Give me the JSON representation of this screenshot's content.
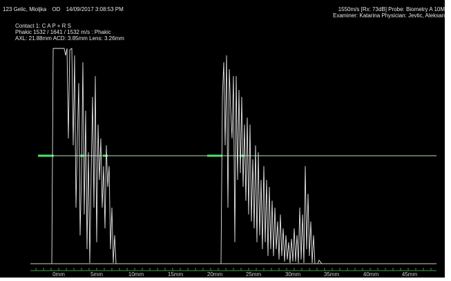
{
  "header": {
    "patient_id": "123 Gelic, Mioljka",
    "eye": "OD",
    "datetime": "14/09/2017 3:08:53 PM",
    "probe_line": "1550m/s  [Rx: 73dB] Probe: Biometry A 10M",
    "staff_line": "Examiner: Katarina  Physician: Jevtic, Aleksan"
  },
  "info": {
    "contact": "Contact 1: C A P + R S",
    "phakic": "Phakic 1532 / 1641 / 1532 m/s : Phakic",
    "measurements": "AXL: 21.88mm  ACD: 3.85mm   Lens: 3.26mm"
  },
  "axis": {
    "labels": [
      "0mm",
      "5mm",
      "10mm",
      "15mm",
      "20mm",
      "25mm",
      "30mm",
      "35mm",
      "40mm",
      "45mm"
    ],
    "unit": "mm"
  },
  "colors": {
    "background": "#000000",
    "text": "#e6e6e6",
    "trace": "#e8e8e8",
    "gate_line": "#b8e6b8",
    "gate_marker": "#49e86a",
    "axis": "#3f9a3f"
  }
}
